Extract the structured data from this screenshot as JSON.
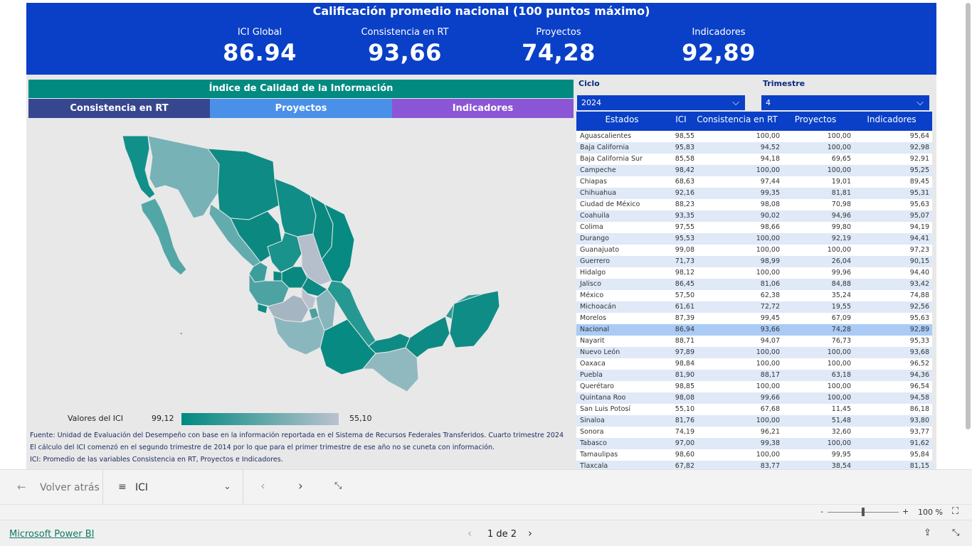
{
  "banner": {
    "title": "Calificación promedio nacional (100 puntos máximo)",
    "kpis": [
      {
        "label": "ICI Global",
        "value": "86.94"
      },
      {
        "label": "Consistencia en RT",
        "value": "93,66"
      },
      {
        "label": "Proyectos",
        "value": "74,28"
      },
      {
        "label": "Indicadores",
        "value": "92,89"
      }
    ]
  },
  "panel": {
    "header": "Índice de Calidad de la Información",
    "tabs": [
      "Consistencia en RT",
      "Proyectos",
      "Indicadores"
    ]
  },
  "legend": {
    "label": "Valores del ICI",
    "max": "99,12",
    "min": "55,10"
  },
  "footnotes": [
    "Fuente: Unidad de Evaluación del Desempeño con base en la información reportada en el Sistema de Recursos Federales Transferidos. Cuarto trimestre 2024",
    "El cálculo del ICI comenzó en el segundo trimestre de 2014 por lo que para el primer trimestre de ese año no se cuneta con información.",
    "ICI: Promedio de las variables Consistencia en RT, Proyectos e Indicadores."
  ],
  "slicers": {
    "ciclo": {
      "label": "Ciclo",
      "value": "2024"
    },
    "trimestre": {
      "label": "Trimestre",
      "value": "4"
    }
  },
  "table": {
    "headers": [
      "Estados",
      "ICI",
      "Consistencia en RT",
      "Proyectos",
      "Indicadores"
    ],
    "rows": [
      [
        "Aguascalientes",
        "98,55",
        "100,00",
        "100,00",
        "95,64"
      ],
      [
        "Baja California",
        "95,83",
        "94,52",
        "100,00",
        "92,98"
      ],
      [
        "Baja California Sur",
        "85,58",
        "94,18",
        "69,65",
        "92,91"
      ],
      [
        "Campeche",
        "98,42",
        "100,00",
        "100,00",
        "95,25"
      ],
      [
        "Chiapas",
        "68,63",
        "97,44",
        "19,01",
        "89,45"
      ],
      [
        "Chihuahua",
        "92,16",
        "99,35",
        "81,81",
        "95,31"
      ],
      [
        "Ciudad de México",
        "88,23",
        "98,08",
        "70,98",
        "95,63"
      ],
      [
        "Coahuila",
        "93,35",
        "90,02",
        "94,96",
        "95,07"
      ],
      [
        "Colima",
        "97,55",
        "98,66",
        "99,80",
        "94,19"
      ],
      [
        "Durango",
        "95,53",
        "100,00",
        "92,19",
        "94,41"
      ],
      [
        "Guanajuato",
        "99,08",
        "100,00",
        "100,00",
        "97,23"
      ],
      [
        "Guerrero",
        "71,73",
        "98,99",
        "26,04",
        "90,15"
      ],
      [
        "Hidalgo",
        "98,12",
        "100,00",
        "99,96",
        "94,40"
      ],
      [
        "Jalisco",
        "86,45",
        "81,06",
        "84,88",
        "93,42"
      ],
      [
        "México",
        "57,50",
        "62,38",
        "35,24",
        "74,88"
      ],
      [
        "Michoacán",
        "61,61",
        "72,72",
        "19,55",
        "92,56"
      ],
      [
        "Morelos",
        "87,39",
        "99,45",
        "67,09",
        "95,63"
      ],
      [
        "Nacional",
        "86,94",
        "93,66",
        "74,28",
        "92,89"
      ],
      [
        "Nayarit",
        "88,71",
        "94,07",
        "76,73",
        "95,33"
      ],
      [
        "Nuevo León",
        "97,89",
        "100,00",
        "100,00",
        "93,68"
      ],
      [
        "Oaxaca",
        "98,84",
        "100,00",
        "100,00",
        "96,52"
      ],
      [
        "Puebla",
        "81,90",
        "88,17",
        "63,18",
        "94,36"
      ],
      [
        "Querétaro",
        "98,85",
        "100,00",
        "100,00",
        "96,54"
      ],
      [
        "Quintana Roo",
        "98,08",
        "99,66",
        "100,00",
        "94,58"
      ],
      [
        "San Luis Potosí",
        "55,10",
        "67,68",
        "11,45",
        "86,18"
      ],
      [
        "Sinaloa",
        "81,76",
        "100,00",
        "51,48",
        "93,80"
      ],
      [
        "Sonora",
        "74,19",
        "96,21",
        "32,60",
        "93,77"
      ],
      [
        "Tabasco",
        "97,00",
        "99,38",
        "100,00",
        "91,62"
      ],
      [
        "Tamaulipas",
        "98,60",
        "100,00",
        "99,95",
        "95,84"
      ],
      [
        "Tlaxcala",
        "67,82",
        "83,77",
        "38,54",
        "81,15"
      ]
    ],
    "highlight_row": "Nacional"
  },
  "navbar": {
    "back_label": "Volver atrás",
    "page_select": "ICI"
  },
  "zoom": {
    "minus": "-",
    "plus": "+",
    "percent": "100 %",
    "level": 0.5
  },
  "footer": {
    "brand": "Microsoft Power BI",
    "pager": "1 de 2"
  },
  "colors": {
    "banner": "#0a40c7",
    "teal": "#008a80",
    "grey_state": "#bac2cf",
    "tab_consistencia": "#36478f",
    "tab_proyectos": "#4a90e8",
    "tab_indicadores": "#8b56d6"
  }
}
